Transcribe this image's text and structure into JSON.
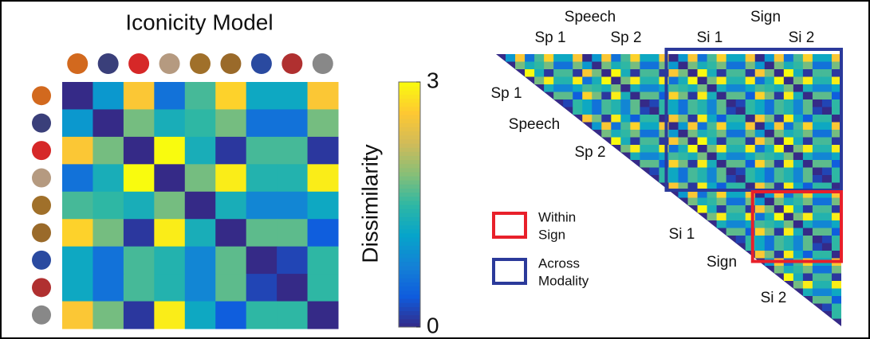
{
  "chart_data": {
    "type": "heatmap",
    "title": "Iconicity Model",
    "values": [
      [
        0,
        1.0,
        2.6,
        0.6,
        1.6,
        2.7,
        1.2,
        1.2,
        2.6
      ],
      [
        1.0,
        0,
        1.8,
        1.3,
        1.5,
        1.8,
        0.6,
        0.6,
        1.8
      ],
      [
        2.6,
        1.8,
        0,
        3.0,
        1.3,
        0.1,
        1.6,
        1.6,
        0.1
      ],
      [
        0.6,
        1.3,
        3.0,
        0,
        1.8,
        2.9,
        1.4,
        1.4,
        2.9
      ],
      [
        1.6,
        1.5,
        1.3,
        1.8,
        0,
        1.3,
        0.8,
        0.8,
        1.2
      ],
      [
        2.7,
        1.8,
        0.1,
        2.9,
        1.3,
        0,
        1.7,
        1.7,
        0.4
      ],
      [
        1.2,
        0.6,
        1.6,
        1.4,
        0.8,
        1.7,
        0,
        0.2,
        1.5
      ],
      [
        1.2,
        0.6,
        1.6,
        1.4,
        0.8,
        1.7,
        0.2,
        0,
        1.5
      ],
      [
        2.6,
        1.8,
        0.1,
        2.9,
        1.2,
        0.4,
        1.5,
        1.5,
        0
      ]
    ],
    "colorbar_label": "Dissimilarity",
    "clim": [
      0,
      3
    ],
    "cticks": [
      0,
      3
    ],
    "colormap": [
      "#352a87",
      "#0f5cdd",
      "#1481d6",
      "#06a4ca",
      "#2eb7a4",
      "#87bf77",
      "#d1bb59",
      "#fec832",
      "#f9fb0e"
    ]
  },
  "diagram": {
    "top_groups": [
      "Speech",
      "Sign"
    ],
    "block_labels": [
      "Sp 1",
      "Sp 2",
      "Si 1",
      "Si 2"
    ],
    "legend": [
      {
        "lines": [
          "Within",
          "Sign"
        ],
        "color": "#e8202a"
      },
      {
        "lines": [
          "Across",
          "Modality"
        ],
        "color": "#2b3a9a"
      }
    ]
  }
}
